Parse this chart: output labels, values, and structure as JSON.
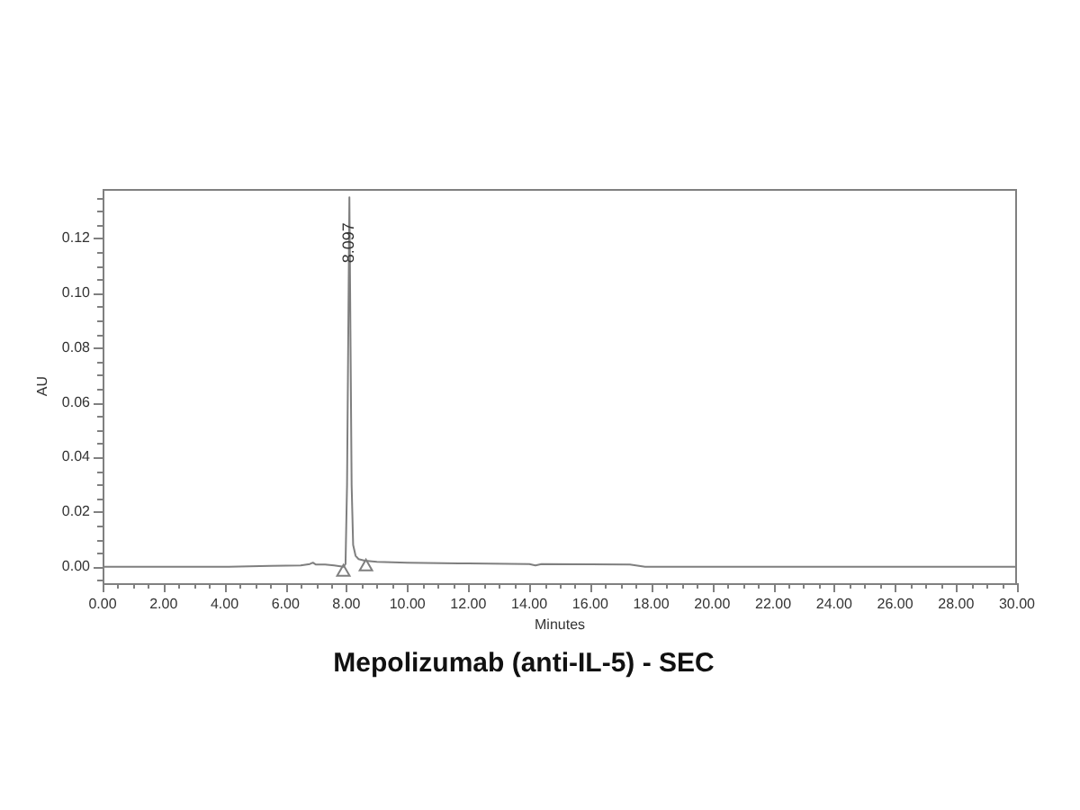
{
  "chart_data": {
    "type": "line",
    "title": "Mepolizumab (anti-IL-5) - SEC",
    "xlabel": "Minutes",
    "ylabel": "AU",
    "xlim": [
      0,
      30
    ],
    "ylim": [
      -0.006,
      0.138
    ],
    "xticks": [
      {
        "value": 0,
        "label": "0.00"
      },
      {
        "value": 0.5,
        "label": null
      },
      {
        "value": 1,
        "label": null
      },
      {
        "value": 1.5,
        "label": null
      },
      {
        "value": 2,
        "label": "2.00"
      },
      {
        "value": 2.5,
        "label": null
      },
      {
        "value": 3,
        "label": null
      },
      {
        "value": 3.5,
        "label": null
      },
      {
        "value": 4,
        "label": "4.00"
      },
      {
        "value": 4.5,
        "label": null
      },
      {
        "value": 5,
        "label": null
      },
      {
        "value": 5.5,
        "label": null
      },
      {
        "value": 6,
        "label": "6.00"
      },
      {
        "value": 6.5,
        "label": null
      },
      {
        "value": 7,
        "label": null
      },
      {
        "value": 7.5,
        "label": null
      },
      {
        "value": 8,
        "label": "8.00"
      },
      {
        "value": 8.5,
        "label": null
      },
      {
        "value": 9,
        "label": null
      },
      {
        "value": 9.5,
        "label": null
      },
      {
        "value": 10,
        "label": "10.00"
      },
      {
        "value": 10.5,
        "label": null
      },
      {
        "value": 11,
        "label": null
      },
      {
        "value": 11.5,
        "label": null
      },
      {
        "value": 12,
        "label": "12.00"
      },
      {
        "value": 12.5,
        "label": null
      },
      {
        "value": 13,
        "label": null
      },
      {
        "value": 13.5,
        "label": null
      },
      {
        "value": 14,
        "label": "14.00"
      },
      {
        "value": 14.5,
        "label": null
      },
      {
        "value": 15,
        "label": null
      },
      {
        "value": 15.5,
        "label": null
      },
      {
        "value": 16,
        "label": "16.00"
      },
      {
        "value": 16.5,
        "label": null
      },
      {
        "value": 17,
        "label": null
      },
      {
        "value": 17.5,
        "label": null
      },
      {
        "value": 18,
        "label": "18.00"
      },
      {
        "value": 18.5,
        "label": null
      },
      {
        "value": 19,
        "label": null
      },
      {
        "value": 19.5,
        "label": null
      },
      {
        "value": 20,
        "label": "20.00"
      },
      {
        "value": 20.5,
        "label": null
      },
      {
        "value": 21,
        "label": null
      },
      {
        "value": 21.5,
        "label": null
      },
      {
        "value": 22,
        "label": "22.00"
      },
      {
        "value": 22.5,
        "label": null
      },
      {
        "value": 23,
        "label": null
      },
      {
        "value": 23.5,
        "label": null
      },
      {
        "value": 24,
        "label": "24.00"
      },
      {
        "value": 24.5,
        "label": null
      },
      {
        "value": 25,
        "label": null
      },
      {
        "value": 25.5,
        "label": null
      },
      {
        "value": 26,
        "label": "26.00"
      },
      {
        "value": 26.5,
        "label": null
      },
      {
        "value": 27,
        "label": null
      },
      {
        "value": 27.5,
        "label": null
      },
      {
        "value": 28,
        "label": "28.00"
      },
      {
        "value": 28.5,
        "label": null
      },
      {
        "value": 29,
        "label": null
      },
      {
        "value": 29.5,
        "label": null
      },
      {
        "value": 30,
        "label": "30.00"
      }
    ],
    "yticks": [
      {
        "value": -0.005,
        "label": null
      },
      {
        "value": 0,
        "label": "0.00"
      },
      {
        "value": 0.005,
        "label": null
      },
      {
        "value": 0.01,
        "label": null
      },
      {
        "value": 0.015,
        "label": null
      },
      {
        "value": 0.02,
        "label": "0.02"
      },
      {
        "value": 0.025,
        "label": null
      },
      {
        "value": 0.03,
        "label": null
      },
      {
        "value": 0.035,
        "label": null
      },
      {
        "value": 0.04,
        "label": "0.04"
      },
      {
        "value": 0.045,
        "label": null
      },
      {
        "value": 0.05,
        "label": null
      },
      {
        "value": 0.055,
        "label": null
      },
      {
        "value": 0.06,
        "label": "0.06"
      },
      {
        "value": 0.065,
        "label": null
      },
      {
        "value": 0.07,
        "label": null
      },
      {
        "value": 0.075,
        "label": null
      },
      {
        "value": 0.08,
        "label": "0.08"
      },
      {
        "value": 0.085,
        "label": null
      },
      {
        "value": 0.09,
        "label": null
      },
      {
        "value": 0.095,
        "label": null
      },
      {
        "value": 0.1,
        "label": "0.10"
      },
      {
        "value": 0.105,
        "label": null
      },
      {
        "value": 0.11,
        "label": null
      },
      {
        "value": 0.115,
        "label": null
      },
      {
        "value": 0.12,
        "label": "0.12"
      },
      {
        "value": 0.125,
        "label": null
      },
      {
        "value": 0.13,
        "label": null
      },
      {
        "value": 0.135,
        "label": null
      }
    ],
    "series": [
      {
        "type": "line",
        "marker": "none",
        "color": "#7f7f7f",
        "x": [
          0,
          2,
          4,
          5.5,
          6.5,
          6.8,
          6.9,
          7.0,
          7.3,
          7.6,
          7.9,
          7.97,
          8.02,
          8.097,
          8.17,
          8.22,
          8.3,
          8.4,
          8.6,
          9.0,
          10,
          12,
          14,
          14.2,
          14.4,
          16,
          17.3,
          17.8,
          20,
          25,
          30
        ],
        "values": [
          0,
          0,
          0,
          0.0003,
          0.0005,
          0.001,
          0.0015,
          0.0008,
          0.0008,
          0.0005,
          0,
          0.001,
          0.03,
          0.135,
          0.03,
          0.008,
          0.004,
          0.0028,
          0.0022,
          0.0018,
          0.0015,
          0.0012,
          0.001,
          0.0005,
          0.001,
          0.0009,
          0.0008,
          0,
          0,
          0,
          0
        ]
      },
      {
        "type": "scatter",
        "marker": "triangle",
        "color": "#7f7f7f",
        "x": [
          7.9,
          8.64
        ],
        "values": [
          -0.002,
          0
        ]
      }
    ],
    "annotations": [
      {
        "text": "8.097",
        "x": 8.097,
        "y": 0.135
      }
    ],
    "legend": false
  }
}
